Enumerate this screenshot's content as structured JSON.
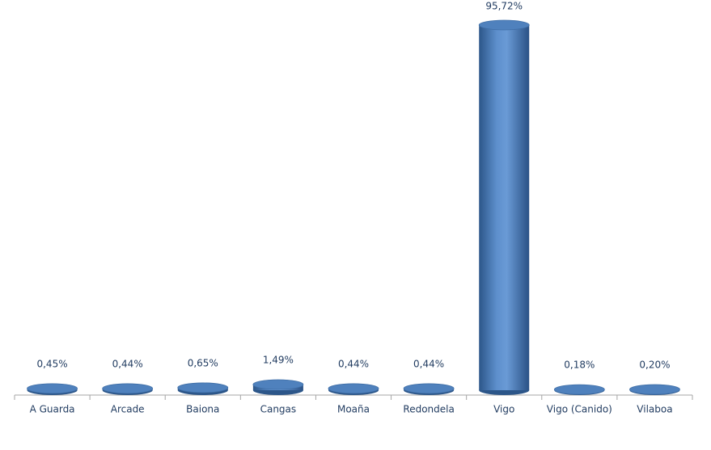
{
  "chart_data": {
    "type": "bar",
    "categories": [
      "A Guarda",
      "Arcade",
      "Baiona",
      "Cangas",
      "Moaña",
      "Redondela",
      "Vigo",
      "Vigo (Canido)",
      "Vilaboa"
    ],
    "values": [
      0.45,
      0.44,
      0.65,
      1.49,
      0.44,
      0.44,
      95.72,
      0.18,
      0.2
    ],
    "value_labels": [
      "0,45%",
      "0,44%",
      "0,65%",
      "1,49%",
      "0,44%",
      "0,44%",
      "95,72%",
      "0,18%",
      "0,20%"
    ],
    "color": "#4f81bd"
  }
}
